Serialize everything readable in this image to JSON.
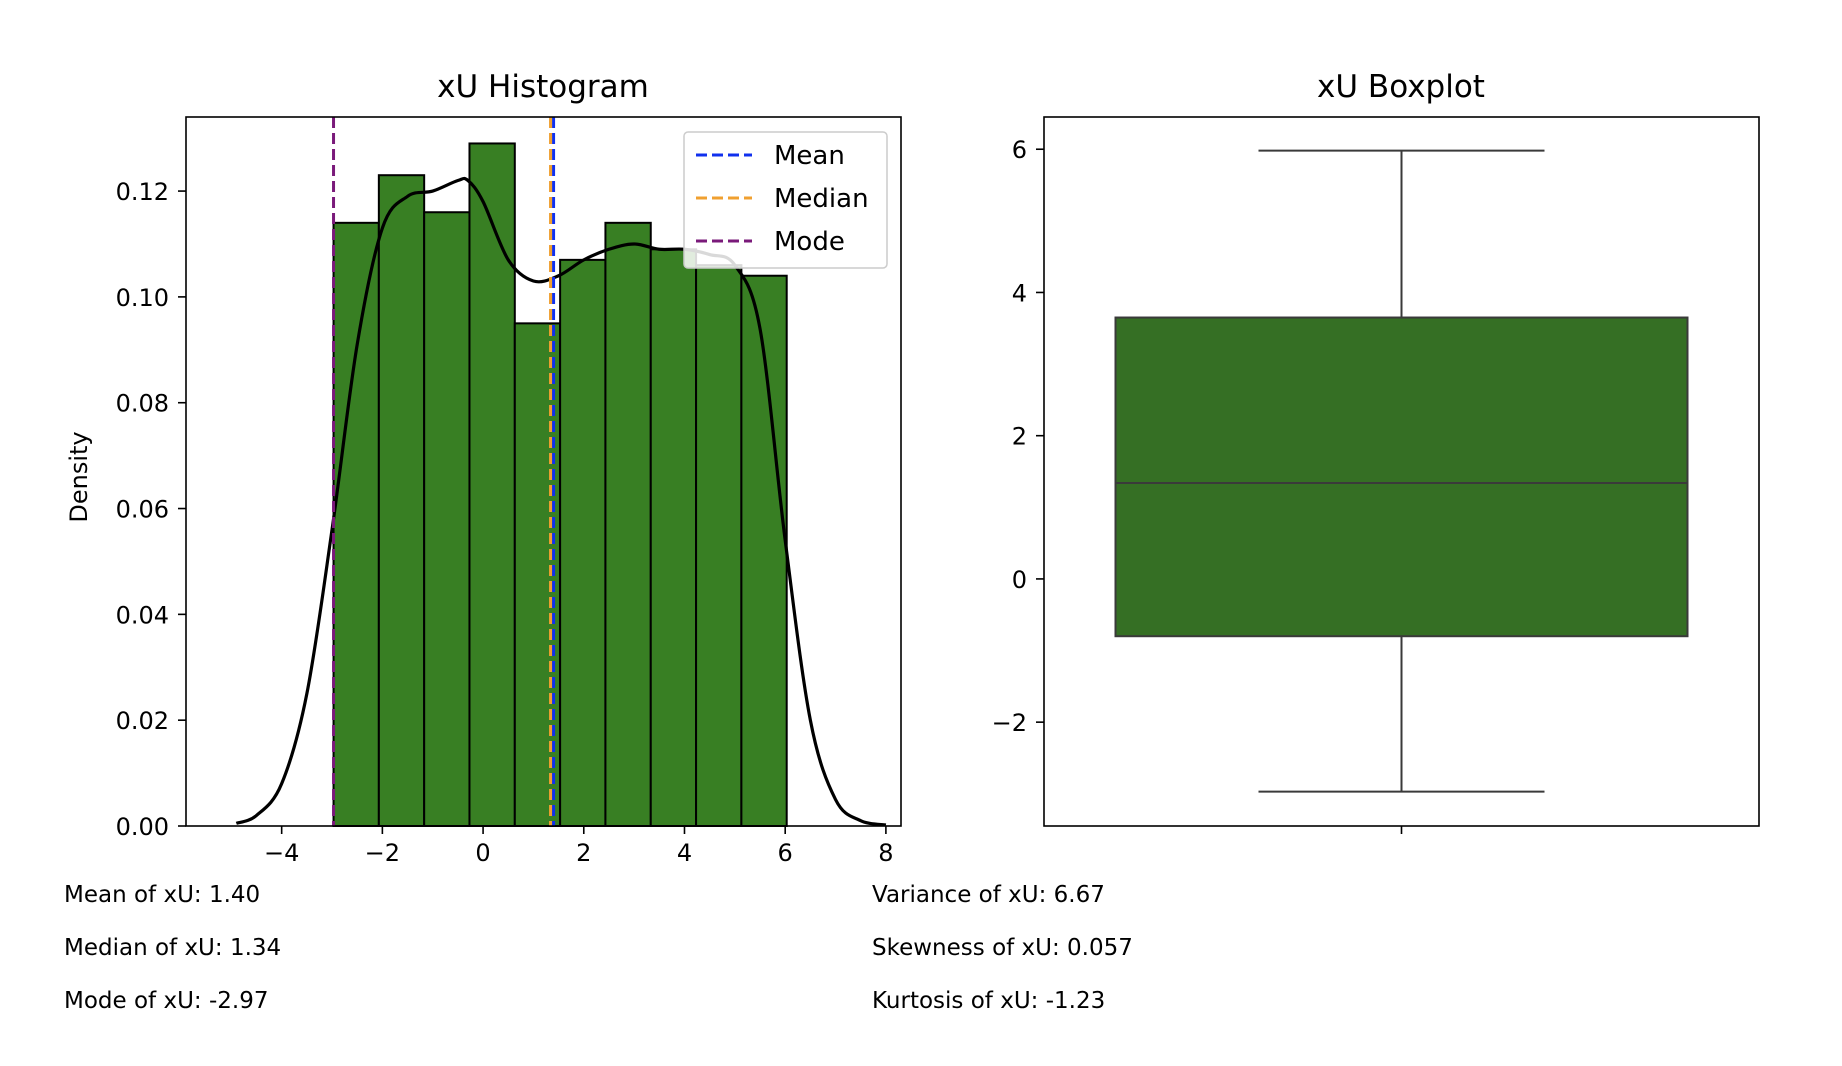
{
  "chart_data": [
    {
      "type": "histogram",
      "title": "xU Histogram",
      "xlabel": "",
      "ylabel": "Density",
      "xlim": [
        -5.9,
        8.3
      ],
      "ylim": [
        0,
        0.134
      ],
      "xticks": [
        -4,
        -2,
        0,
        2,
        4,
        6,
        8
      ],
      "xtick_labels": [
        "−4",
        "−2",
        "0",
        "2",
        "4",
        "6",
        "8"
      ],
      "yticks": [
        0,
        0.02,
        0.04,
        0.06,
        0.08,
        0.1,
        0.12
      ],
      "ytick_labels": [
        "0.00",
        "0.02",
        "0.04",
        "0.06",
        "0.08",
        "0.10",
        "0.12"
      ],
      "bar_color": "#387f23",
      "bin_edges": [
        -2.97,
        -2.07,
        -1.17,
        -0.27,
        0.63,
        1.53,
        2.43,
        3.33,
        4.23,
        5.13,
        6.03
      ],
      "values": [
        0.114,
        0.123,
        0.116,
        0.129,
        0.095,
        0.107,
        0.114,
        0.109,
        0.106,
        0.104
      ],
      "kde": {
        "color": "#000000",
        "x": [
          -4.9,
          -4.5,
          -4.0,
          -3.5,
          -3.0,
          -2.5,
          -2.0,
          -1.5,
          -1.0,
          -0.5,
          -0.3,
          0.0,
          0.5,
          1.0,
          1.5,
          2.0,
          2.5,
          3.0,
          3.5,
          4.0,
          4.5,
          5.0,
          5.5,
          6.0,
          6.5,
          7.0,
          7.5,
          8.0
        ],
        "y": [
          0.0005,
          0.002,
          0.008,
          0.025,
          0.056,
          0.091,
          0.113,
          0.119,
          0.12,
          0.122,
          0.122,
          0.118,
          0.107,
          0.103,
          0.104,
          0.107,
          0.109,
          0.11,
          0.109,
          0.109,
          0.108,
          0.106,
          0.094,
          0.054,
          0.02,
          0.005,
          0.001,
          0.0002
        ]
      },
      "reference_lines": [
        {
          "name": "Mean",
          "x": 1.4,
          "color": "#1030ee"
        },
        {
          "name": "Median",
          "x": 1.34,
          "color": "#f0a030"
        },
        {
          "name": "Mode",
          "x": -2.97,
          "color": "#7a1a7a"
        }
      ],
      "legend": {
        "placement": "top-right",
        "entries": [
          "Mean",
          "Median",
          "Mode"
        ]
      }
    },
    {
      "type": "boxplot",
      "title": "xU Boxplot",
      "ylim": [
        -3.45,
        6.45
      ],
      "yticks": [
        -2,
        0,
        2,
        4,
        6
      ],
      "ytick_labels": [
        "−2",
        "0",
        "2",
        "4",
        "6"
      ],
      "box_color": "#356f24",
      "whisker_low": -2.97,
      "q1": -0.8,
      "median": 1.34,
      "q3": 3.65,
      "whisker_high": 5.98
    }
  ],
  "stats": {
    "mean": "Mean of xU: 1.40",
    "median": "Median of xU: 1.34",
    "mode": "Mode of xU: -2.97",
    "variance": "Variance of xU: 6.67",
    "skewness": "Skewness of xU: 0.057",
    "kurtosis": "Kurtosis of xU: -1.23"
  }
}
